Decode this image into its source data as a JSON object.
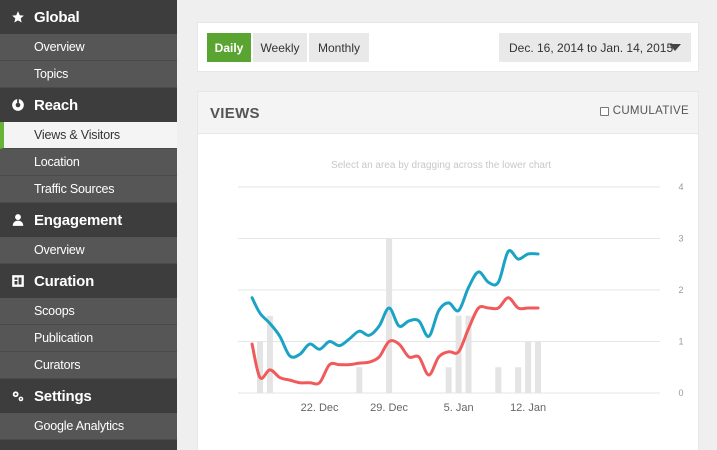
{
  "sidebar": {
    "sections": [
      {
        "title": "Global",
        "icon": "star-icon",
        "items": [
          {
            "label": "Overview"
          },
          {
            "label": "Topics"
          }
        ]
      },
      {
        "title": "Reach",
        "icon": "reach-icon",
        "items": [
          {
            "label": "Views & Visitors",
            "active": true
          },
          {
            "label": "Location"
          },
          {
            "label": "Traffic Sources"
          }
        ]
      },
      {
        "title": "Engagement",
        "icon": "person-icon",
        "items": [
          {
            "label": "Overview"
          }
        ]
      },
      {
        "title": "Curation",
        "icon": "curation-icon",
        "items": [
          {
            "label": "Scoops"
          },
          {
            "label": "Publication"
          },
          {
            "label": "Curators"
          }
        ]
      },
      {
        "title": "Settings",
        "icon": "gears-icon",
        "items": [
          {
            "label": "Google Analytics"
          }
        ]
      }
    ]
  },
  "toolbar": {
    "ranges": [
      "Daily",
      "Weekly",
      "Monthly"
    ],
    "active_range": "Daily",
    "date_range": "Dec. 16, 2014 to Jan. 14, 2015"
  },
  "panel": {
    "title": "VIEWS",
    "cumulative_label": "CUMULATIVE",
    "hint": "Select an area by dragging across the lower chart"
  },
  "colors": {
    "accent": "#5aa431",
    "teal": "#1ba3c6",
    "red": "#f05a5a",
    "bars": "#e4e4e4",
    "sidebar": "#3d3d3d"
  },
  "chart_data": {
    "type": "line",
    "x_tick_labels": [
      "22. Dec",
      "29. Dec",
      "5. Jan",
      "12. Jan"
    ],
    "x_tick_days": [
      6,
      13,
      20,
      27
    ],
    "y_tick_labels": [
      "0",
      "1",
      "2",
      "3",
      "4"
    ],
    "ylim": [
      0,
      4
    ],
    "bars": {
      "days": [
        0,
        1,
        10,
        13,
        19,
        20,
        21,
        24,
        26,
        27,
        28
      ],
      "values": [
        1.0,
        1.5,
        0.5,
        3.0,
        0.5,
        1.5,
        1.5,
        0.5,
        0.5,
        1.0,
        1.0
      ]
    },
    "series": [
      {
        "color": "#1ba3c6",
        "x": [
          -0.8,
          0,
          1,
          2,
          3,
          4,
          5,
          6,
          7,
          8,
          9,
          10,
          11,
          12,
          13,
          14,
          15,
          16,
          17,
          18,
          19,
          20,
          21,
          22,
          23,
          24,
          25,
          26,
          27,
          28
        ],
        "values": [
          1.85,
          1.55,
          1.35,
          1.1,
          0.72,
          0.75,
          0.95,
          0.85,
          1.0,
          0.92,
          1.05,
          1.2,
          1.12,
          1.3,
          1.65,
          1.3,
          1.4,
          1.4,
          1.1,
          1.6,
          1.75,
          1.6,
          2.05,
          2.35,
          2.15,
          2.15,
          2.75,
          2.6,
          2.7,
          2.7
        ]
      },
      {
        "color": "#f05a5a",
        "x": [
          -0.8,
          0,
          1,
          2,
          3,
          4,
          5,
          6,
          7,
          8,
          9,
          10,
          11,
          12,
          13,
          14,
          15,
          16,
          17,
          18,
          19,
          20,
          21,
          22,
          23,
          24,
          25,
          26,
          27,
          28
        ],
        "values": [
          0.95,
          0.3,
          0.45,
          0.3,
          0.25,
          0.2,
          0.2,
          0.2,
          0.55,
          0.55,
          0.55,
          0.58,
          0.6,
          0.7,
          1.0,
          0.95,
          0.7,
          0.7,
          0.35,
          0.7,
          0.8,
          0.8,
          1.25,
          1.65,
          1.65,
          1.65,
          1.85,
          1.65,
          1.65,
          1.65
        ]
      }
    ]
  }
}
